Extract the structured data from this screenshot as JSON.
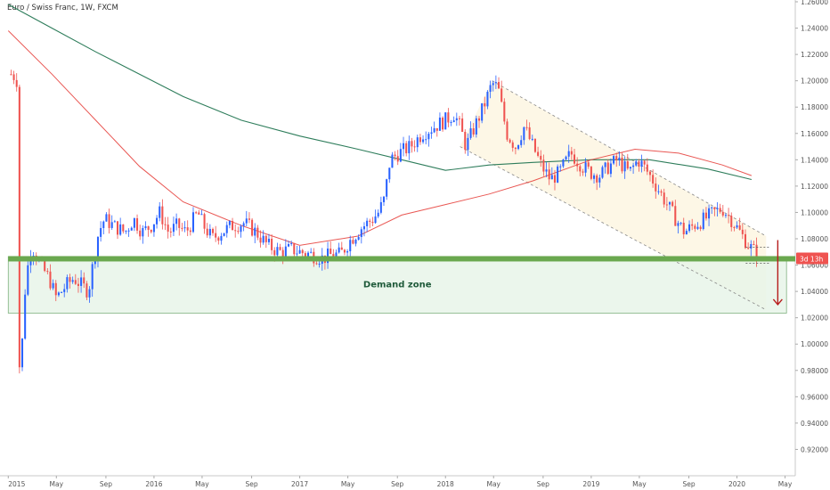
{
  "chart_data": {
    "type": "candlestick",
    "title": "Euro / Swiss Franc, 1W, FXCM",
    "ylim": [
      0.9,
      1.26
    ],
    "y_ticks": [
      "1.26000",
      "1.24000",
      "1.22000",
      "1.20000",
      "1.18000",
      "1.16000",
      "1.14000",
      "1.12000",
      "1.10000",
      "1.08000",
      "1.06000",
      "1.04000",
      "1.02000",
      "1.00000",
      "0.98000",
      "0.96000",
      "0.94000",
      "0.92000"
    ],
    "x_ticks": [
      {
        "label": "2015",
        "t": 0
      },
      {
        "label": "May",
        "t": 0.33
      },
      {
        "label": "Sep",
        "t": 0.67
      },
      {
        "label": "2016",
        "t": 1.0
      },
      {
        "label": "May",
        "t": 1.33
      },
      {
        "label": "Sep",
        "t": 1.67
      },
      {
        "label": "2017",
        "t": 2.0
      },
      {
        "label": "May",
        "t": 2.33
      },
      {
        "label": "Sep",
        "t": 2.67
      },
      {
        "label": "2018",
        "t": 3.0
      },
      {
        "label": "May",
        "t": 3.33
      },
      {
        "label": "Sep",
        "t": 3.67
      },
      {
        "label": "2019",
        "t": 4.0
      },
      {
        "label": "May",
        "t": 4.33
      },
      {
        "label": "Sep",
        "t": 4.67
      },
      {
        "label": "2020",
        "t": 5.0
      },
      {
        "label": "May",
        "t": 5.33
      }
    ],
    "price_path": [
      [
        0.0,
        1.205
      ],
      [
        0.03,
        1.205
      ],
      [
        0.06,
        1.2
      ],
      [
        0.07,
        0.98
      ],
      [
        0.09,
        0.99
      ],
      [
        0.12,
        1.05
      ],
      [
        0.16,
        1.075
      ],
      [
        0.22,
        1.06
      ],
      [
        0.28,
        1.05
      ],
      [
        0.33,
        1.035
      ],
      [
        0.4,
        1.045
      ],
      [
        0.45,
        1.05
      ],
      [
        0.5,
        1.045
      ],
      [
        0.55,
        1.04
      ],
      [
        0.58,
        1.06
      ],
      [
        0.62,
        1.085
      ],
      [
        0.66,
        1.095
      ],
      [
        0.72,
        1.09
      ],
      [
        0.8,
        1.085
      ],
      [
        0.86,
        1.095
      ],
      [
        0.92,
        1.085
      ],
      [
        0.98,
        1.09
      ],
      [
        1.04,
        1.1
      ],
      [
        1.1,
        1.085
      ],
      [
        1.16,
        1.09
      ],
      [
        1.22,
        1.085
      ],
      [
        1.3,
        1.1
      ],
      [
        1.34,
        1.09
      ],
      [
        1.4,
        1.08
      ],
      [
        1.46,
        1.085
      ],
      [
        1.54,
        1.09
      ],
      [
        1.62,
        1.092
      ],
      [
        1.7,
        1.085
      ],
      [
        1.78,
        1.075
      ],
      [
        1.86,
        1.07
      ],
      [
        1.94,
        1.072
      ],
      [
        2.0,
        1.07
      ],
      [
        2.08,
        1.068
      ],
      [
        2.16,
        1.065
      ],
      [
        2.22,
        1.068
      ],
      [
        2.28,
        1.068
      ],
      [
        2.34,
        1.078
      ],
      [
        2.42,
        1.088
      ],
      [
        2.5,
        1.095
      ],
      [
        2.54,
        1.1
      ],
      [
        2.58,
        1.11
      ],
      [
        2.62,
        1.14
      ],
      [
        2.68,
        1.145
      ],
      [
        2.76,
        1.15
      ],
      [
        2.84,
        1.16
      ],
      [
        2.92,
        1.165
      ],
      [
        3.0,
        1.17
      ],
      [
        3.06,
        1.175
      ],
      [
        3.1,
        1.165
      ],
      [
        3.14,
        1.15
      ],
      [
        3.2,
        1.165
      ],
      [
        3.26,
        1.18
      ],
      [
        3.32,
        1.198
      ],
      [
        3.36,
        1.195
      ],
      [
        3.42,
        1.16
      ],
      [
        3.48,
        1.15
      ],
      [
        3.54,
        1.165
      ],
      [
        3.6,
        1.15
      ],
      [
        3.66,
        1.135
      ],
      [
        3.72,
        1.125
      ],
      [
        3.78,
        1.13
      ],
      [
        3.86,
        1.145
      ],
      [
        3.94,
        1.135
      ],
      [
        4.0,
        1.13
      ],
      [
        4.06,
        1.128
      ],
      [
        4.12,
        1.135
      ],
      [
        4.18,
        1.14
      ],
      [
        4.26,
        1.13
      ],
      [
        4.32,
        1.14
      ],
      [
        4.36,
        1.135
      ],
      [
        4.42,
        1.125
      ],
      [
        4.5,
        1.11
      ],
      [
        4.58,
        1.095
      ],
      [
        4.64,
        1.085
      ],
      [
        4.7,
        1.09
      ],
      [
        4.78,
        1.095
      ],
      [
        4.84,
        1.1
      ],
      [
        4.9,
        1.103
      ],
      [
        4.96,
        1.095
      ],
      [
        5.02,
        1.085
      ],
      [
        5.08,
        1.075
      ],
      [
        5.14,
        1.068
      ]
    ],
    "ma_green": [
      [
        0.0,
        1.258
      ],
      [
        0.3,
        1.24
      ],
      [
        0.6,
        1.222
      ],
      [
        0.9,
        1.205
      ],
      [
        1.2,
        1.188
      ],
      [
        1.6,
        1.17
      ],
      [
        2.0,
        1.158
      ],
      [
        2.4,
        1.148
      ],
      [
        2.7,
        1.14
      ],
      [
        3.0,
        1.132
      ],
      [
        3.3,
        1.136
      ],
      [
        3.6,
        1.138
      ],
      [
        4.0,
        1.14
      ],
      [
        4.4,
        1.14
      ],
      [
        4.8,
        1.133
      ],
      [
        5.1,
        1.125
      ]
    ],
    "ma_red": [
      [
        0.0,
        1.238
      ],
      [
        0.3,
        1.205
      ],
      [
        0.6,
        1.17
      ],
      [
        0.9,
        1.135
      ],
      [
        1.2,
        1.108
      ],
      [
        1.6,
        1.09
      ],
      [
        2.0,
        1.075
      ],
      [
        2.4,
        1.082
      ],
      [
        2.7,
        1.098
      ],
      [
        3.0,
        1.106
      ],
      [
        3.3,
        1.114
      ],
      [
        3.6,
        1.124
      ],
      [
        4.0,
        1.14
      ],
      [
        4.3,
        1.148
      ],
      [
        4.6,
        1.145
      ],
      [
        4.9,
        1.136
      ],
      [
        5.1,
        1.128
      ]
    ],
    "demand_zone": {
      "label": "Demand zone",
      "low": 1.0235,
      "high": 1.0665
    },
    "support_level": 1.0648,
    "channel": {
      "upper": [
        [
          3.32,
          1.2
        ],
        [
          5.2,
          1.082
        ]
      ],
      "lower": [
        [
          3.1,
          1.15
        ],
        [
          5.2,
          1.026
        ]
      ]
    },
    "last_price_badge": "3d 13h",
    "colors": {
      "up": "#2962ff",
      "down": "#ef5350",
      "ma_green": "#2e7d5b",
      "ma_red": "#e53935",
      "zone": "#e8f5e9",
      "zone_border": "#6aa56a",
      "support": "#6aa84f",
      "channel_fill": "#fdf6e3",
      "badge": "#ef5350",
      "arrow": "#b71c1c"
    }
  }
}
